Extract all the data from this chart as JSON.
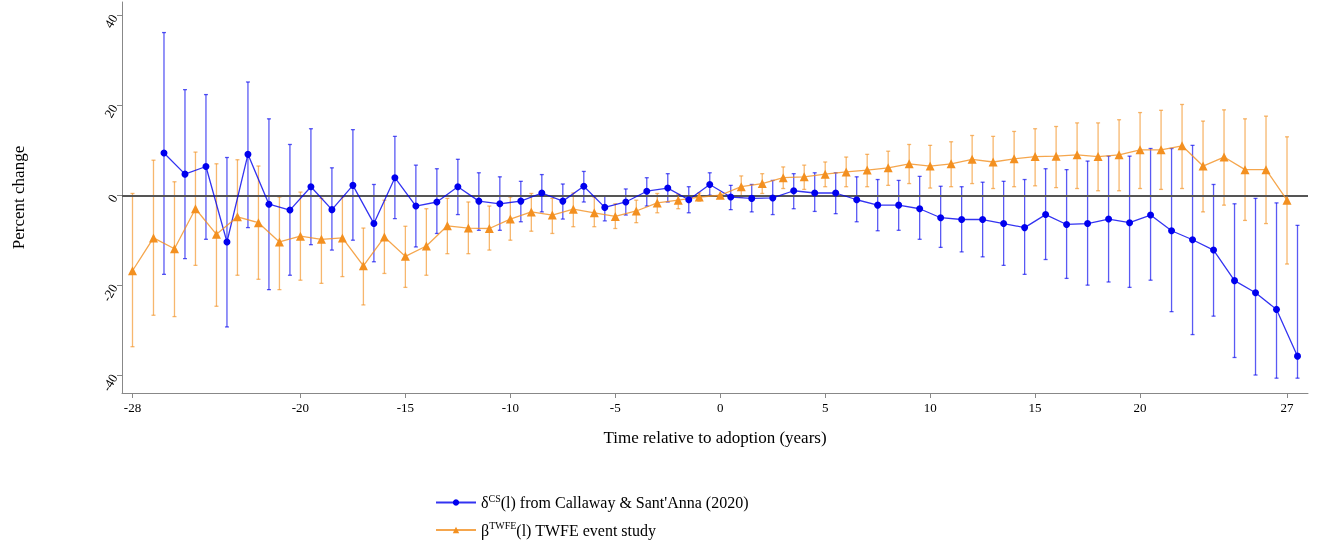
{
  "chart_data": {
    "type": "line",
    "xlabel": "Time relative to adoption (years)",
    "ylabel": "Percent change",
    "xlim": [
      -28.5,
      28
    ],
    "xticks": [
      -28,
      -20,
      -15,
      -10,
      -5,
      0,
      5,
      10,
      15,
      20,
      27
    ],
    "ylim": [
      -44,
      43
    ],
    "yticks": [
      -40,
      -20,
      0,
      20,
      40
    ],
    "grid": false,
    "legend": "bottom",
    "ref_lines": [
      {
        "axis": "y",
        "value": 0,
        "color": "#555555"
      }
    ],
    "series": [
      {
        "name": "δ$^{CS}$(l) from Callaway & Sant'Anna (2020)",
        "color": "#0000ee",
        "marker": "circle",
        "x": [
          -26.5,
          -25.5,
          -24.5,
          -23.5,
          -22.5,
          -21.5,
          -20.5,
          -19.5,
          -18.5,
          -17.5,
          -16.5,
          -15.5,
          -14.5,
          -13.5,
          -12.5,
          -11.5,
          -10.5,
          -9.5,
          -8.5,
          -7.5,
          -6.5,
          -5.5,
          -4.5,
          -3.5,
          -2.5,
          -1.5,
          -0.5,
          0.5,
          1.5,
          2.5,
          3.5,
          4.5,
          5.5,
          6.5,
          7.5,
          8.5,
          9.5,
          10.5,
          11.5,
          12.5,
          13.5,
          14.5,
          15.5,
          16.5,
          17.5,
          18.5,
          19.5,
          20.5,
          21.5,
          22.5,
          23.5,
          24.5,
          25.5,
          26.5,
          27.5
        ],
        "values": [
          9.4,
          4.7,
          6.4,
          -10.4,
          9.1,
          -2.0,
          -3.3,
          1.9,
          -3.2,
          2.2,
          -6.3,
          3.9,
          -2.4,
          -1.5,
          1.9,
          -1.3,
          -1.9,
          -1.3,
          0.5,
          -1.3,
          2.0,
          -2.7,
          -1.5,
          0.9,
          1.6,
          -1.0,
          2.4,
          -0.4,
          -0.7,
          -0.6,
          1.0,
          0.5,
          0.5,
          -1.0,
          -2.2,
          -2.2,
          -3.0,
          -5.0,
          -5.4,
          -5.4,
          -6.3,
          -7.2,
          -4.3,
          -6.5,
          -6.3,
          -5.3,
          -6.1,
          -4.4,
          -7.9,
          -9.9,
          -12.2,
          -19.0,
          -21.7,
          -25.4,
          -35.8
        ],
        "errors": [
          [
            -17.6,
            36.2
          ],
          [
            -14.1,
            23.5
          ],
          [
            -9.8,
            22.4
          ],
          [
            -29.3,
            8.4
          ],
          [
            -7.2,
            25.2
          ],
          [
            -21,
            17
          ],
          [
            -17.8,
            11.3
          ],
          [
            -11,
            14.8
          ],
          [
            -12.2,
            6.1
          ],
          [
            -10,
            14.6
          ],
          [
            -14.8,
            2.4
          ],
          [
            -5.2,
            13.1
          ],
          [
            -11.5,
            6.7
          ],
          [
            -8.5,
            5.9
          ],
          [
            -4.3,
            8
          ],
          [
            -7.8,
            5
          ],
          [
            -7.8,
            4.1
          ],
          [
            -5.9,
            3.1
          ],
          [
            -3.7,
            4.6
          ],
          [
            -5.3,
            2.5
          ],
          [
            -1.5,
            5.3
          ],
          [
            -5.7,
            -0.1
          ],
          [
            -4.4,
            1.4
          ],
          [
            -2.4,
            3.9
          ],
          [
            -1.5,
            4.8
          ],
          [
            -3.9,
            1.9
          ],
          [
            0,
            5
          ],
          [
            -3.2,
            2.2
          ],
          [
            -3.7,
            2.4
          ],
          [
            -4.3,
            3.3
          ],
          [
            -3,
            4.8
          ],
          [
            -3.6,
            5
          ],
          [
            -4.1,
            5
          ],
          [
            -5.9,
            4.1
          ],
          [
            -7.9,
            3.5
          ],
          [
            -7.8,
            3.3
          ],
          [
            -9.8,
            4.2
          ],
          [
            -11.6,
            2
          ],
          [
            -12.6,
            1.9
          ],
          [
            -13.7,
            2.9
          ],
          [
            -15.6,
            3.1
          ],
          [
            -17.6,
            3.5
          ],
          [
            -14.3,
            5.9
          ],
          [
            -18.5,
            5.7
          ],
          [
            -20,
            7.6
          ],
          [
            -19.3,
            8.7
          ],
          [
            -20.5,
            8.7
          ],
          [
            -18.9,
            10.4
          ],
          [
            -25.9,
            10.4
          ],
          [
            -31,
            11.1
          ],
          [
            -26.9,
            2.4
          ],
          [
            -36.1,
            -1.9
          ],
          [
            -40,
            -0.7
          ],
          [
            -40.7,
            -1.7
          ],
          [
            -40.7,
            -6.7
          ]
        ]
      },
      {
        "name": "β$^{TWFE}$(l) TWFE event study",
        "color": "#f39020",
        "marker": "triangle",
        "x": [
          -28,
          -27,
          -26,
          -25,
          -24,
          -23,
          -22,
          -21,
          -20,
          -19,
          -18,
          -17,
          -16,
          -15,
          -14,
          -13,
          -12,
          -11,
          -10,
          -9,
          -8,
          -7,
          -6,
          -5,
          -4,
          -3,
          -2,
          -1,
          0,
          1,
          2,
          3,
          4,
          5,
          6,
          7,
          8,
          9,
          10,
          11,
          12,
          13,
          14,
          15,
          16,
          17,
          18,
          19,
          20,
          21,
          22,
          23,
          24,
          25,
          26,
          27
        ],
        "values": [
          -16.8,
          -9.5,
          -11.9,
          -3.0,
          -8.7,
          -4.8,
          -6.1,
          -10.4,
          -9.1,
          -9.8,
          -9.5,
          -15.7,
          -9.3,
          -13.6,
          -11.3,
          -6.8,
          -7.3,
          -7.4,
          -5.3,
          -3.7,
          -4.4,
          -3.1,
          -3.9,
          -4.7,
          -3.5,
          -1.7,
          -1.1,
          -0.4,
          0,
          1.9,
          2.6,
          3.9,
          4.1,
          4.7,
          5.2,
          5.6,
          6.1,
          7.0,
          6.5,
          7.0,
          8.0,
          7.4,
          8.1,
          8.6,
          8.7,
          9.0,
          8.6,
          9.0,
          10.1,
          10.1,
          11.0,
          6.5,
          8.5,
          5.7,
          5.7,
          -1.1
        ],
        "errors": [
          [
            -33.7,
            0.4
          ],
          [
            -26.7,
            7.8
          ],
          [
            -27,
            3
          ],
          [
            -15.6,
            9.6
          ],
          [
            -24.7,
            7
          ],
          [
            -17.8,
            7.9
          ],
          [
            -18.7,
            6.5
          ],
          [
            -21,
            -0.4
          ],
          [
            -18.9,
            0.7
          ],
          [
            -19.6,
            -0.7
          ],
          [
            -18.1,
            -0.4
          ],
          [
            -24.4,
            -7.3
          ],
          [
            -17.4,
            -1.1
          ],
          [
            -20.5,
            -6.9
          ],
          [
            -17.8,
            -3
          ],
          [
            -13,
            -0.7
          ],
          [
            -13,
            -1.5
          ],
          [
            -12.2,
            -2.4
          ],
          [
            -10,
            -0.4
          ],
          [
            -8,
            0.4
          ],
          [
            -8.5,
            -0.7
          ],
          [
            -7,
            0.5
          ],
          [
            -7,
            -0.4
          ],
          [
            -7.4,
            -1.9
          ],
          [
            -6.1,
            -1.1
          ],
          [
            -3.9,
            0.4
          ],
          [
            -3,
            0.2
          ],
          [
            -1.3,
            0.5
          ],
          null,
          [
            -0.4,
            4.3
          ],
          [
            0.4,
            4.8
          ],
          [
            1.5,
            6.3
          ],
          [
            1.3,
            6.7
          ],
          [
            1.9,
            7.4
          ],
          [
            1.9,
            8.5
          ],
          [
            1.9,
            9.1
          ],
          [
            2.2,
            9.8
          ],
          [
            2.6,
            11.3
          ],
          [
            1.6,
            11.1
          ],
          [
            1.9,
            11.9
          ],
          [
            2.6,
            13.3
          ],
          [
            1.5,
            13.1
          ],
          [
            1.9,
            14.2
          ],
          [
            2.1,
            14.8
          ],
          [
            1.7,
            15.3
          ],
          [
            1.5,
            16.1
          ],
          [
            1,
            16.1
          ],
          [
            1,
            16.8
          ],
          [
            1.5,
            18.4
          ],
          [
            1.3,
            18.9
          ],
          [
            1.5,
            20.2
          ],
          [
            -3.7,
            16.5
          ],
          [
            -2.2,
            19
          ],
          [
            -5.6,
            17
          ],
          [
            -6.3,
            17.6
          ],
          [
            -15.3,
            13
          ]
        ]
      }
    ]
  }
}
